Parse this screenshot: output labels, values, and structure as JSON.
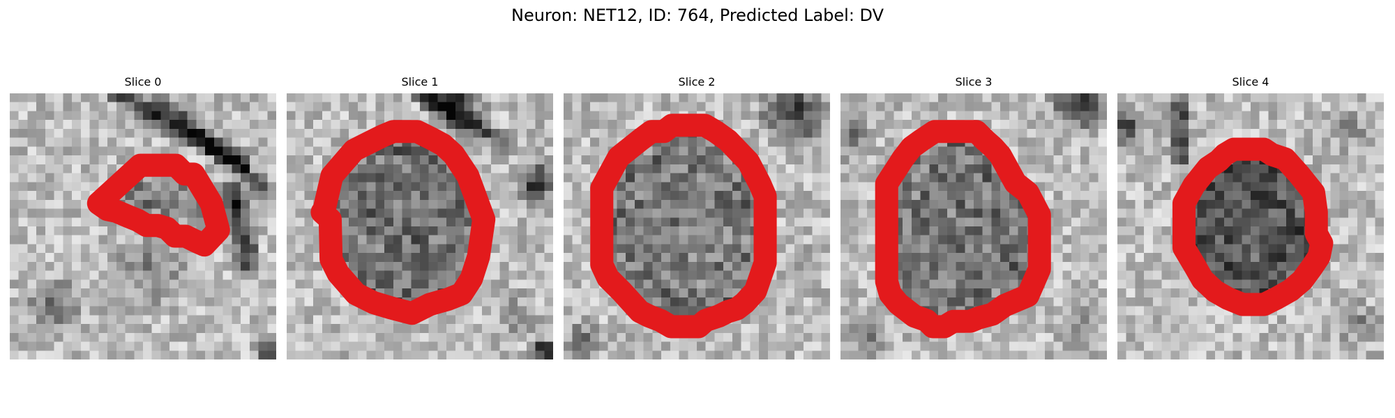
{
  "figure": {
    "title": "Neuron: NET12, ID: 764, Predicted Label: DV"
  },
  "panels": [
    {
      "title": "Slice 0",
      "seed": 11,
      "outline": [
        [
          10,
          12.4
        ],
        [
          14.7,
          8.1
        ],
        [
          18.7,
          8.1
        ],
        [
          19.7,
          9.1
        ],
        [
          20.7,
          9.1
        ],
        [
          22.7,
          12.4
        ],
        [
          23.5,
          15.4
        ],
        [
          21.9,
          17.1
        ],
        [
          20.8,
          16.6
        ],
        [
          19.8,
          16.1
        ],
        [
          18.6,
          16.1
        ],
        [
          17.7,
          15.2
        ],
        [
          16.7,
          14.9
        ],
        [
          15.4,
          14.9
        ],
        [
          14.4,
          14.3
        ],
        [
          13.4,
          13.9
        ],
        [
          12,
          13.3
        ],
        [
          11,
          13.1
        ]
      ],
      "inside_dark": 0.22,
      "structures": "slice0"
    },
    {
      "title": "Slice 1",
      "seed": 23,
      "outline": [
        [
          4.2,
          13.2
        ],
        [
          5.1,
          9.3
        ],
        [
          7.6,
          6.4
        ],
        [
          9.8,
          5.3
        ],
        [
          10.8,
          4.8
        ],
        [
          12,
          4.3
        ],
        [
          14.7,
          4.3
        ],
        [
          16.3,
          5.1
        ],
        [
          17.6,
          5.8
        ],
        [
          18.8,
          6.9
        ],
        [
          20.4,
          9.3
        ],
        [
          22.2,
          14.2
        ],
        [
          21.6,
          18.4
        ],
        [
          20.8,
          20.9
        ],
        [
          19.7,
          22.6
        ],
        [
          18.2,
          23.2
        ],
        [
          16.1,
          23.8
        ],
        [
          14.1,
          24.8
        ],
        [
          11.8,
          24.2
        ],
        [
          9.8,
          23.6
        ],
        [
          7.8,
          22.6
        ],
        [
          5.8,
          20.3
        ],
        [
          5,
          18.7
        ],
        [
          4.9,
          14.2
        ],
        [
          4,
          13.4
        ]
      ],
      "inside_dark": 0.3,
      "structures": "slice1"
    },
    {
      "title": "Slice 2",
      "seed": 37,
      "outline": [
        [
          4.3,
          10.7
        ],
        [
          6.2,
          7.2
        ],
        [
          8.7,
          5.2
        ],
        [
          9.9,
          4.3
        ],
        [
          11.3,
          4.3
        ],
        [
          12.2,
          3.6
        ],
        [
          15.9,
          3.6
        ],
        [
          17.1,
          4.3
        ],
        [
          18.5,
          5.3
        ],
        [
          20.8,
          7.7
        ],
        [
          22.1,
          10.2
        ],
        [
          22.7,
          11.6
        ],
        [
          22.7,
          19.1
        ],
        [
          21.6,
          22.3
        ],
        [
          20.4,
          23.6
        ],
        [
          19.5,
          24.3
        ],
        [
          18.5,
          24.6
        ],
        [
          17.5,
          25.1
        ],
        [
          16,
          25.6
        ],
        [
          15.2,
          26.3
        ],
        [
          12.1,
          26.3
        ],
        [
          10.9,
          25.6
        ],
        [
          9.6,
          25.1
        ],
        [
          8.6,
          24.6
        ],
        [
          6.6,
          22.4
        ],
        [
          5,
          20.8
        ],
        [
          4.3,
          19.3
        ]
      ],
      "inside_dark": 0.26,
      "structures": "slice2"
    },
    {
      "title": "Slice 3",
      "seed": 53,
      "outline": [
        [
          5.2,
          10.2
        ],
        [
          6.3,
          8.5
        ],
        [
          7,
          7.4
        ],
        [
          8,
          6.1
        ],
        [
          9.1,
          5.3
        ],
        [
          10.6,
          4.3
        ],
        [
          15.3,
          4.3
        ],
        [
          16.3,
          5.3
        ],
        [
          17.2,
          6.1
        ],
        [
          18,
          7
        ],
        [
          19.7,
          10.1
        ],
        [
          21.1,
          11.2
        ],
        [
          22.4,
          13.7
        ],
        [
          22.4,
          19.8
        ],
        [
          21.1,
          22.8
        ],
        [
          18.5,
          23.9
        ],
        [
          17.1,
          24.9
        ],
        [
          15.6,
          25.3
        ],
        [
          14.6,
          25.7
        ],
        [
          12.7,
          25.7
        ],
        [
          11.7,
          26.3
        ],
        [
          10.4,
          26.3
        ],
        [
          9.7,
          25.6
        ],
        [
          8.3,
          25.1
        ],
        [
          6.5,
          23.7
        ],
        [
          5.6,
          22.6
        ],
        [
          5.2,
          21.2
        ]
      ],
      "inside_dark": 0.28,
      "structures": "slice3"
    },
    {
      "title": "Slice 4",
      "seed": 71,
      "outline": [
        [
          7.5,
          12.4
        ],
        [
          8.6,
          10.4
        ],
        [
          10.2,
          8.4
        ],
        [
          11.4,
          7.6
        ],
        [
          12.1,
          6.9
        ],
        [
          13.1,
          6.3
        ],
        [
          16.5,
          6.3
        ],
        [
          17.4,
          6.9
        ],
        [
          18.9,
          7.4
        ],
        [
          20.5,
          9.2
        ],
        [
          22.1,
          11.2
        ],
        [
          22.4,
          13.4
        ],
        [
          22.4,
          15.8
        ],
        [
          23,
          16.9
        ],
        [
          22.7,
          18.4
        ],
        [
          21.9,
          19.6
        ],
        [
          20.8,
          21.1
        ],
        [
          19.5,
          22.2
        ],
        [
          17.9,
          23.1
        ],
        [
          16.5,
          23.8
        ],
        [
          14.1,
          23.8
        ],
        [
          12.4,
          23.1
        ],
        [
          11,
          22.3
        ],
        [
          9.6,
          21
        ],
        [
          8.8,
          19.6
        ],
        [
          7.5,
          17.4
        ]
      ],
      "inside_dark": 0.42,
      "structures": "slice4"
    }
  ],
  "style": {
    "outline_color": "#e31a1c"
  }
}
